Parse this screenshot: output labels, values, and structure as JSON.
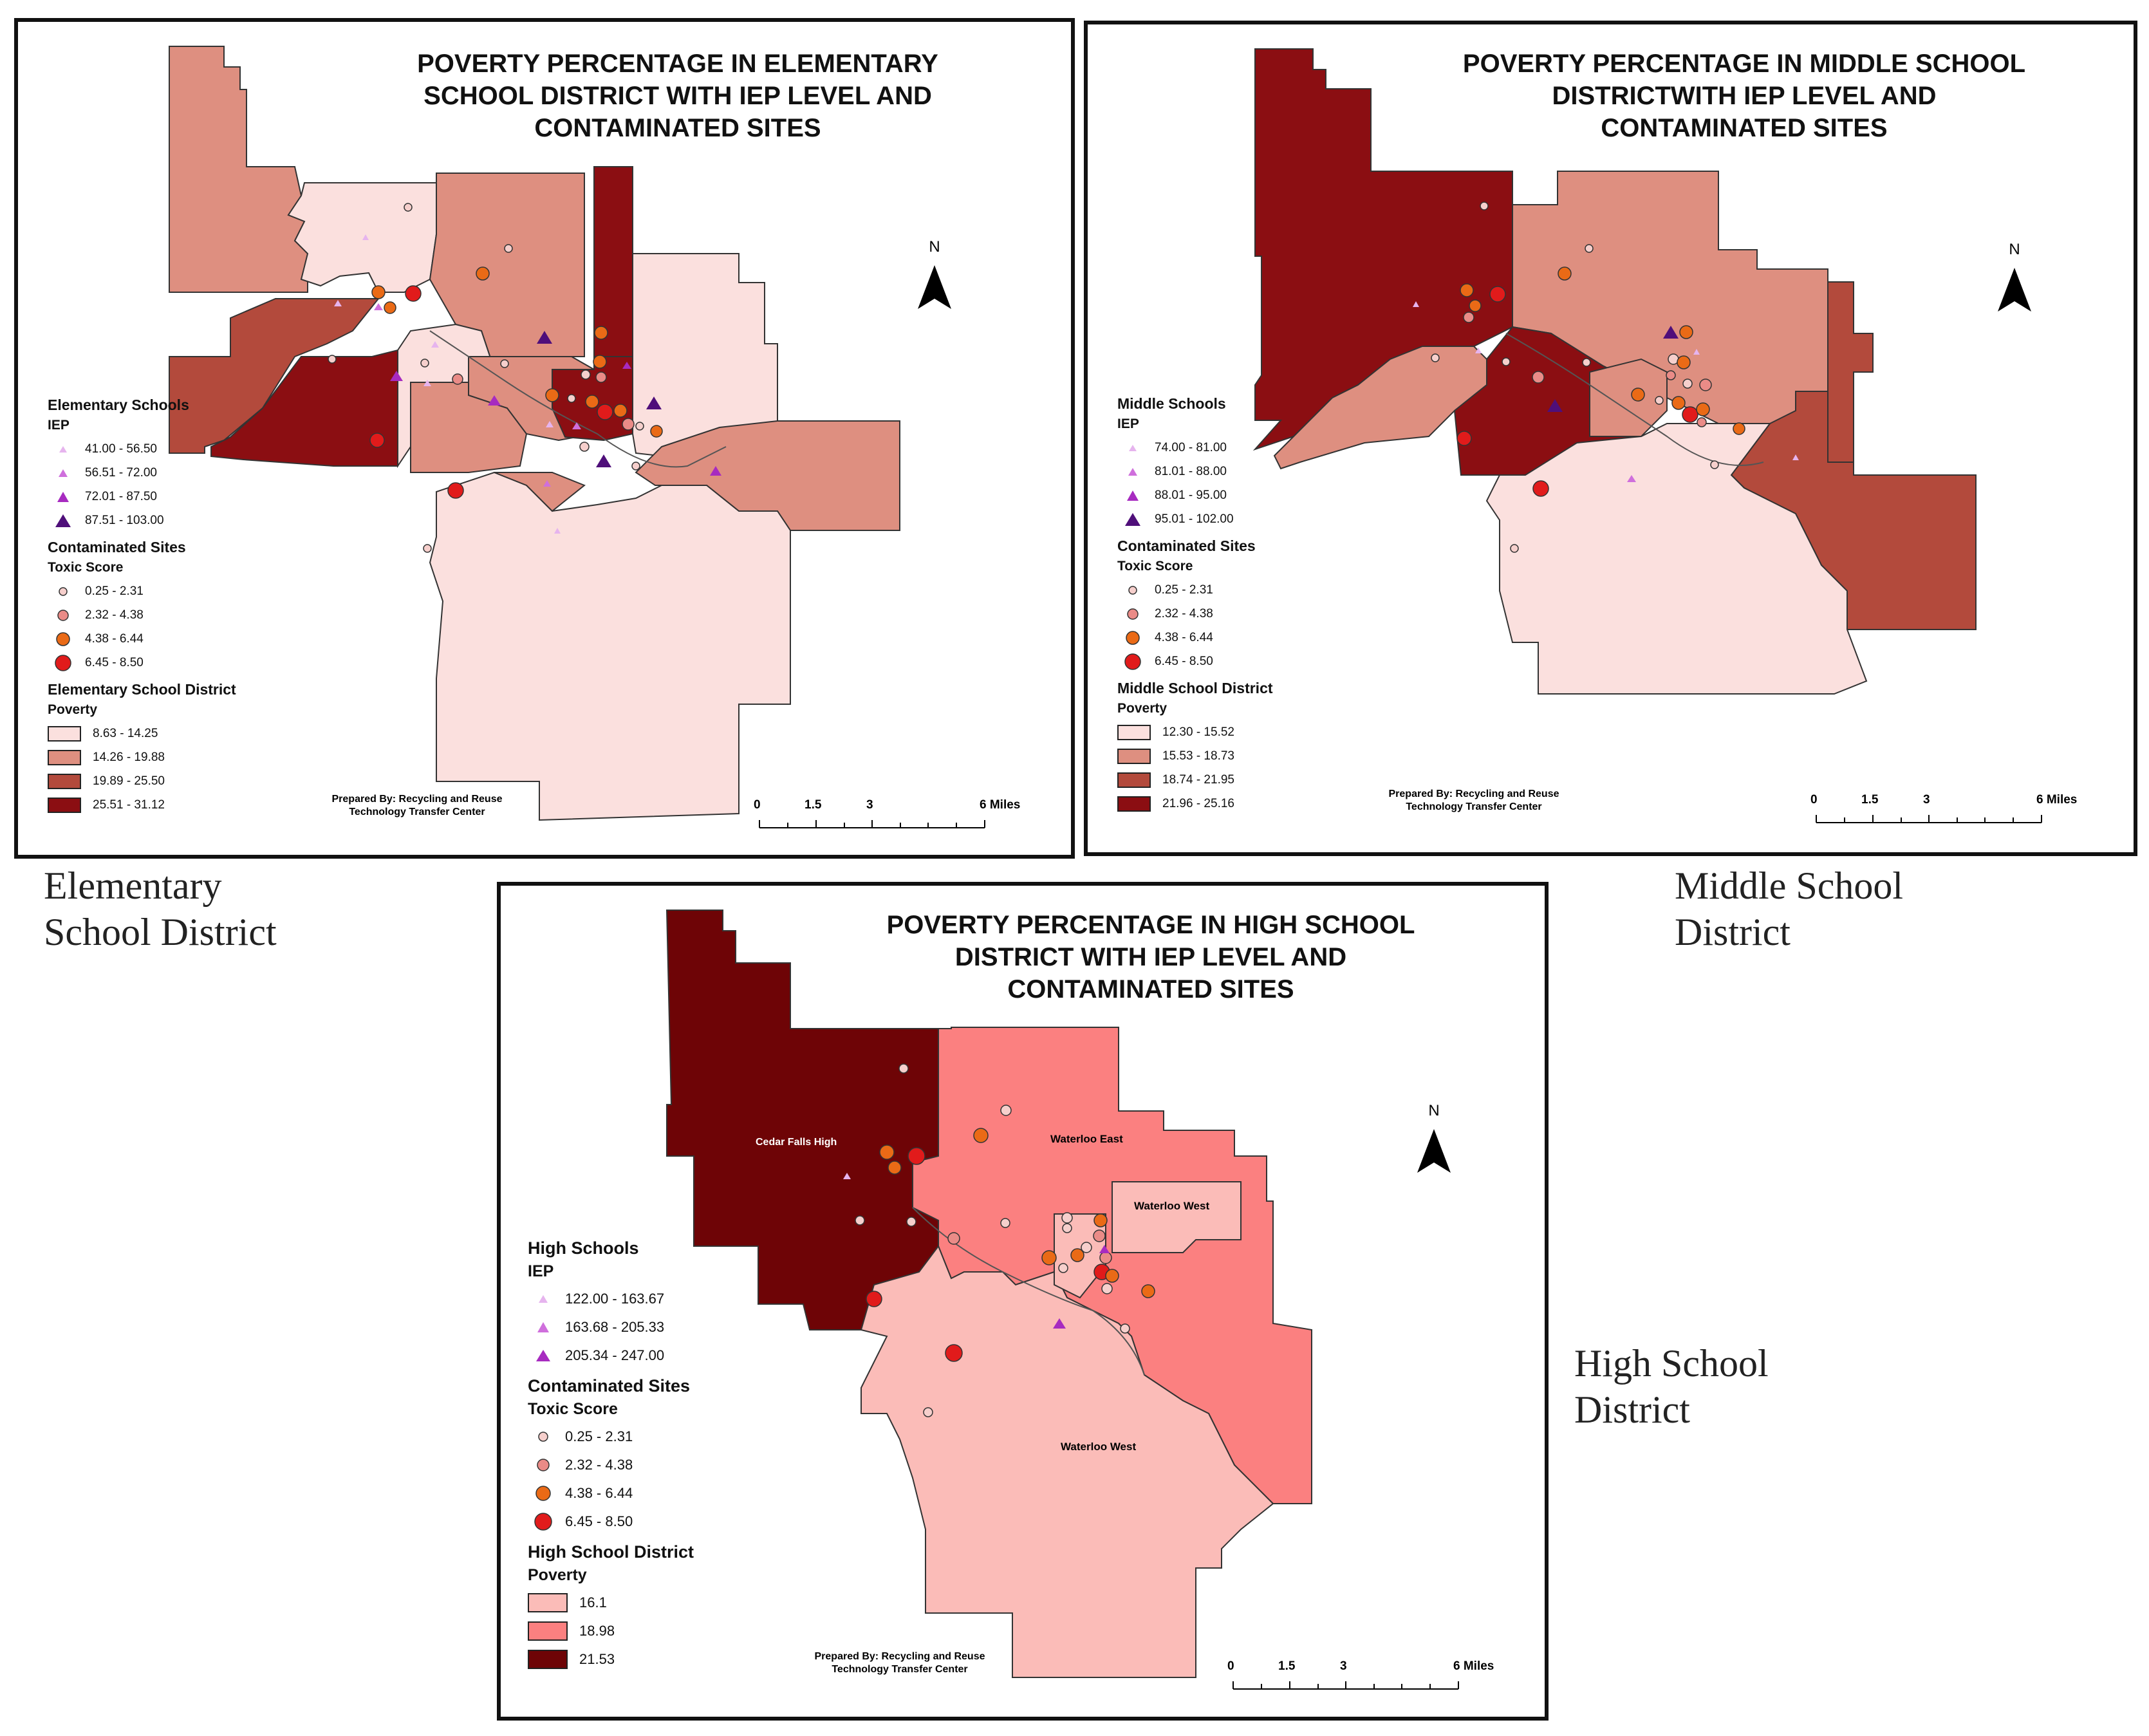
{
  "colors": {
    "elem_poverty": [
      "#fbe0de",
      "#de8f80",
      "#b34a3c",
      "#8b0e12"
    ],
    "middle_poverty": [
      "#fbe0de",
      "#de8f80",
      "#b34a3c",
      "#8b0e12"
    ],
    "high_poverty": [
      "#fbbcb8",
      "#fb8080",
      "#6e0406"
    ],
    "iep": [
      "#e6b4ee",
      "#cf6fdc",
      "#a72bc0",
      "#4f0f7a"
    ],
    "toxic": [
      "#f6cfcc",
      "#ea8b87",
      "#ea6a16",
      "#e11b1b"
    ]
  },
  "elementary": {
    "title": [
      "POVERTY PERCENTAGE IN ELEMENTARY",
      "SCHOOL DISTRICT WITH IEP LEVEL AND",
      "CONTAMINATED SITES"
    ],
    "schools_heading": "Elementary Schools",
    "iep_label": "IEP",
    "iep_ranges": [
      "41.00 - 56.50",
      "56.51 - 72.00",
      "72.01 - 87.50",
      "87.51 - 103.00"
    ],
    "sites_heading": "Contaminated Sites",
    "toxic_label": "Toxic Score",
    "toxic_ranges": [
      "0.25 - 2.31",
      "2.32 - 4.38",
      "4.38 - 6.44",
      "6.45 - 8.50"
    ],
    "district_heading": "Elementary School District",
    "poverty_label": "Poverty",
    "poverty_ranges": [
      "8.63 - 14.25",
      "14.26 - 19.88",
      "19.89 - 25.50",
      "25.51 - 31.12"
    ],
    "prepared": [
      "Prepared By: Recycling and Reuse",
      "Technology Transfer Center"
    ],
    "scale": [
      "0",
      "1.5",
      "3",
      "6 Miles"
    ],
    "north": "N",
    "caption": [
      "Elementary",
      "School District"
    ]
  },
  "middle": {
    "title": [
      "POVERTY PERCENTAGE IN MIDDLE SCHOOL",
      "DISTRICTWITH IEP LEVEL AND",
      "CONTAMINATED SITES"
    ],
    "schools_heading": "Middle Schools",
    "iep_label": "IEP",
    "iep_ranges": [
      "74.00 - 81.00",
      "81.01 - 88.00",
      "88.01 - 95.00",
      "95.01 - 102.00"
    ],
    "sites_heading": "Contaminated Sites",
    "toxic_label": "Toxic Score",
    "toxic_ranges": [
      "0.25 - 2.31",
      "2.32 - 4.38",
      "4.38 - 6.44",
      "6.45 - 8.50"
    ],
    "district_heading": "Middle School District",
    "poverty_label": "Poverty",
    "poverty_ranges": [
      "12.30 - 15.52",
      "15.53 - 18.73",
      "18.74 - 21.95",
      "21.96 - 25.16"
    ],
    "prepared": [
      "Prepared By: Recycling and Reuse",
      "Technology Transfer Center"
    ],
    "scale": [
      "0",
      "1.5",
      "3",
      "6 Miles"
    ],
    "north": "N",
    "caption": [
      "Middle School",
      "District"
    ]
  },
  "high": {
    "title": [
      "POVERTY PERCENTAGE IN HIGH SCHOOL",
      "DISTRICT WITH IEP LEVEL AND",
      "CONTAMINATED SITES"
    ],
    "schools_heading": "High Schools",
    "iep_label": "IEP",
    "iep_ranges": [
      "122.00 - 163.67",
      "163.68 - 205.33",
      "205.34 - 247.00"
    ],
    "sites_heading": "Contaminated Sites",
    "toxic_label": "Toxic Score",
    "toxic_ranges": [
      "0.25 - 2.31",
      "2.32 - 4.38",
      "4.38 - 6.44",
      "6.45 - 8.50"
    ],
    "district_heading": "High School District",
    "poverty_label": "Poverty",
    "poverty_ranges": [
      "16.1",
      "18.98",
      "21.53"
    ],
    "district_names": [
      "Cedar Falls High",
      "Waterloo East",
      "Waterloo West",
      "Waterloo West"
    ],
    "prepared": [
      "Prepared By: Recycling and Reuse",
      "Technology Transfer Center"
    ],
    "scale": [
      "0",
      "1.5",
      "3",
      "6 Miles"
    ],
    "north": "N",
    "caption": [
      "High School",
      "District"
    ]
  }
}
